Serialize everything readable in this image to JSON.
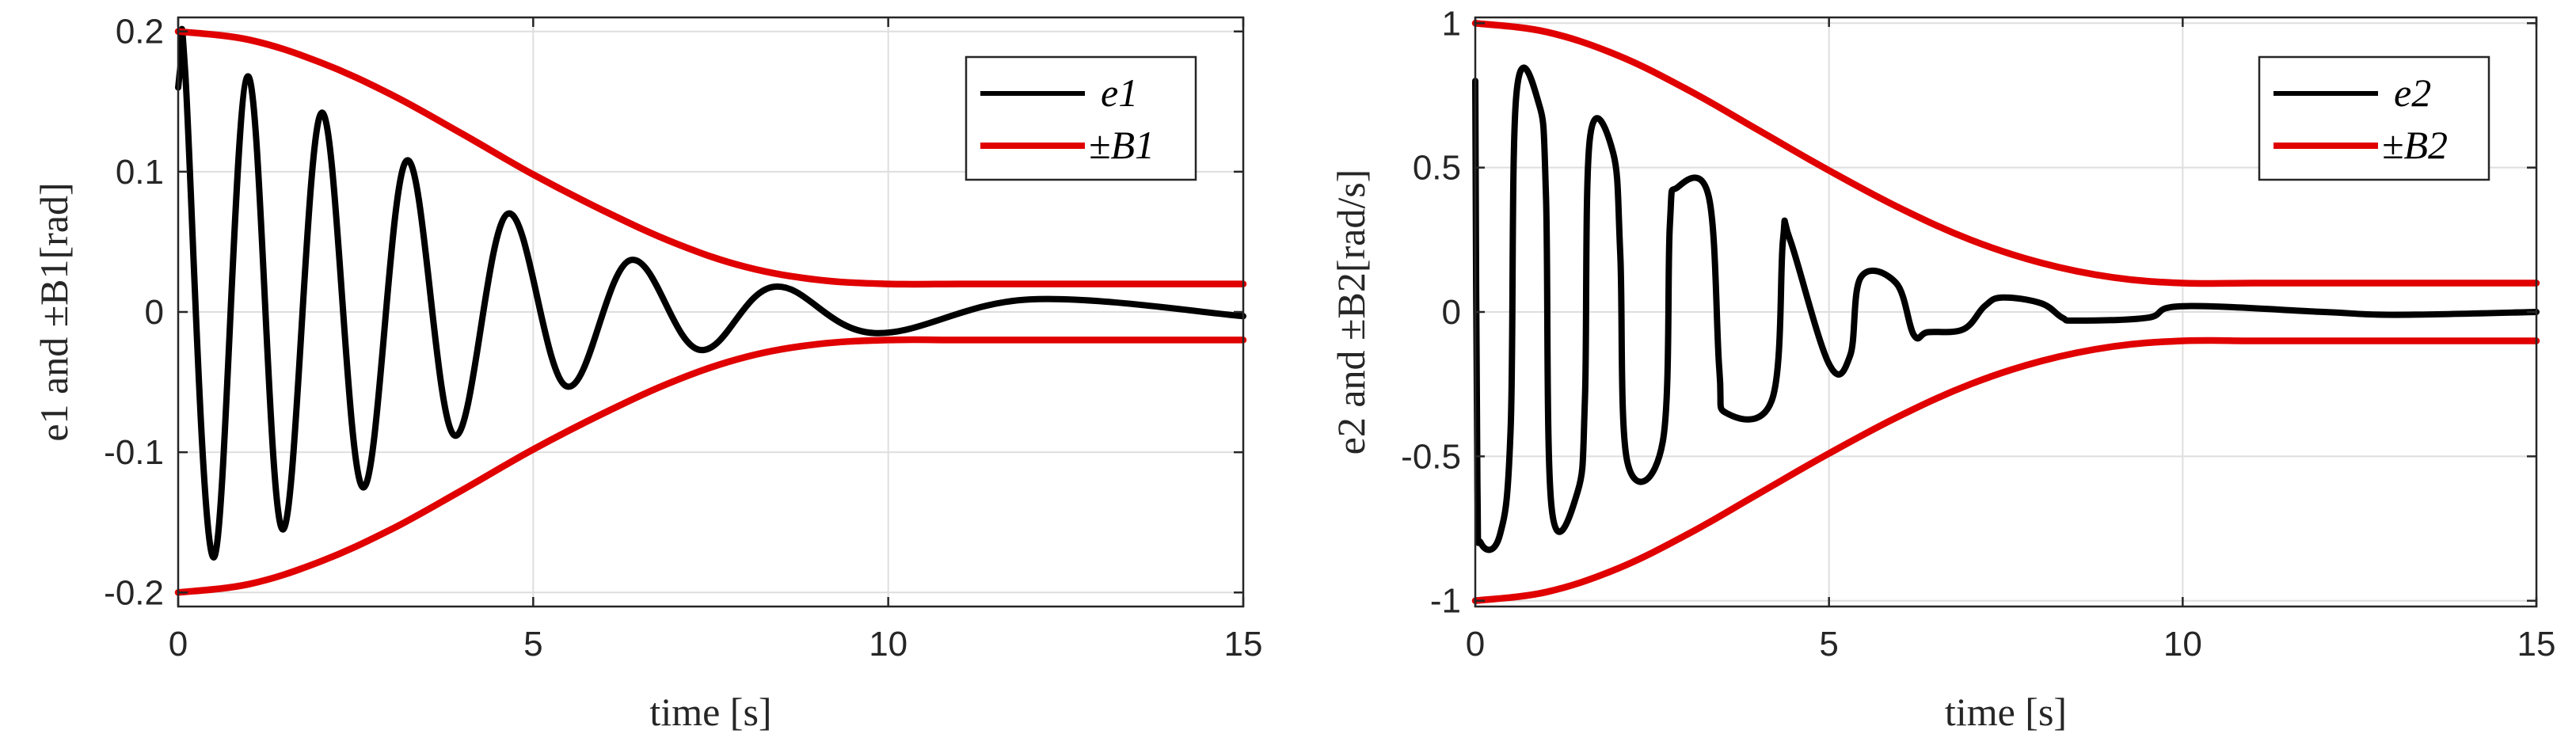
{
  "colors": {
    "error": "#000000",
    "bound": "#e00000",
    "grid": "#dedede",
    "axis": "#262626"
  },
  "chart_data": [
    {
      "type": "line",
      "xlabel": "time [s]",
      "ylabel": "e1 and ±B1[rad]",
      "xlim": [
        0,
        15
      ],
      "ylim": [
        -0.21,
        0.21
      ],
      "xticks": [
        0,
        5,
        10,
        15
      ],
      "xtick_labels": [
        "0",
        "5",
        "10",
        "15"
      ],
      "yticks": [
        -0.2,
        -0.1,
        0,
        0.1,
        0.2
      ],
      "ytick_labels": [
        "-0.2",
        "-0.1",
        "0",
        "0.1",
        "0.2"
      ],
      "grid": true,
      "legend_position": "top-right",
      "legend": [
        "e1",
        "±B1"
      ],
      "series": [
        {
          "name": "e1",
          "x": [
            0,
            0.05,
            0.1,
            0.5,
            0.98,
            1.47,
            2.02,
            2.6,
            3.22,
            3.89,
            4.64,
            5.47,
            6.37,
            7.34,
            8.4,
            9.8,
            12.0,
            15.0
          ],
          "y": [
            0.16,
            0.18,
            0.17,
            -0.175,
            0.168,
            -0.155,
            0.142,
            -0.125,
            0.108,
            -0.088,
            0.07,
            -0.053,
            0.037,
            -0.027,
            0.018,
            -0.015,
            0.009,
            -0.003
          ]
        },
        {
          "name": "B1 upper",
          "x": [
            0,
            1,
            2,
            3,
            4,
            5,
            6,
            7,
            8,
            9,
            10,
            11,
            12,
            13,
            14,
            15
          ],
          "y": [
            0.2,
            0.194,
            0.178,
            0.155,
            0.127,
            0.098,
            0.072,
            0.049,
            0.032,
            0.023,
            0.02,
            0.02,
            0.02,
            0.02,
            0.02,
            0.02
          ]
        },
        {
          "name": "B1 lower",
          "x": [
            0,
            1,
            2,
            3,
            4,
            5,
            6,
            7,
            8,
            9,
            10,
            11,
            12,
            13,
            14,
            15
          ],
          "y": [
            -0.2,
            -0.194,
            -0.178,
            -0.155,
            -0.127,
            -0.098,
            -0.072,
            -0.049,
            -0.032,
            -0.023,
            -0.02,
            -0.02,
            -0.02,
            -0.02,
            -0.02,
            -0.02
          ]
        }
      ]
    },
    {
      "type": "line",
      "xlabel": "time [s]",
      "ylabel": "e2 and ±B2[rad/s]",
      "xlim": [
        0,
        15
      ],
      "ylim": [
        -1.02,
        1.02
      ],
      "xticks": [
        0,
        5,
        10,
        15
      ],
      "xtick_labels": [
        "0",
        "5",
        "10",
        "15"
      ],
      "yticks": [
        -1,
        -0.5,
        0,
        0.5,
        1
      ],
      "ytick_labels": [
        "-1",
        "-0.5",
        "0",
        "0.5",
        "1"
      ],
      "grid": true,
      "legend_position": "top-right",
      "legend": [
        "e2",
        "±B2"
      ],
      "series": [
        {
          "name": "e2",
          "x": [
            0,
            0.03,
            0.08,
            0.35,
            0.5,
            0.58,
            0.9,
            1.0,
            1.08,
            1.45,
            1.55,
            1.62,
            1.95,
            2.05,
            2.15,
            2.65,
            2.75,
            2.85,
            3.3,
            3.45,
            3.55,
            4.2,
            4.35,
            4.45,
            5.0,
            5.3,
            5.45,
            5.95,
            6.2,
            6.4,
            6.9,
            7.2,
            7.45,
            8.0,
            8.3,
            8.5,
            9.5,
            10.0,
            12.0,
            13.0,
            15.0
          ],
          "y": [
            0.8,
            -0.6,
            -0.8,
            -0.77,
            -0.4,
            0.75,
            0.72,
            0.4,
            -0.68,
            -0.62,
            -0.3,
            0.6,
            0.55,
            0.2,
            -0.52,
            -0.45,
            0.3,
            0.43,
            0.4,
            -0.2,
            -0.35,
            -0.3,
            0.25,
            0.25,
            -0.18,
            -0.15,
            0.12,
            0.1,
            -0.08,
            -0.07,
            -0.06,
            0.02,
            0.05,
            0.03,
            -0.02,
            -0.03,
            -0.02,
            0.02,
            0.0,
            -0.01,
            0.0
          ]
        },
        {
          "name": "B2 upper",
          "x": [
            0,
            1,
            2,
            3,
            4,
            5,
            6,
            7,
            8,
            9,
            10,
            11,
            12,
            13,
            14,
            15
          ],
          "y": [
            1.0,
            0.97,
            0.89,
            0.77,
            0.63,
            0.49,
            0.36,
            0.25,
            0.17,
            0.12,
            0.1,
            0.1,
            0.1,
            0.1,
            0.1,
            0.1
          ]
        },
        {
          "name": "B2 lower",
          "x": [
            0,
            1,
            2,
            3,
            4,
            5,
            6,
            7,
            8,
            9,
            10,
            11,
            12,
            13,
            14,
            15
          ],
          "y": [
            -1.0,
            -0.97,
            -0.89,
            -0.77,
            -0.63,
            -0.49,
            -0.36,
            -0.25,
            -0.17,
            -0.12,
            -0.1,
            -0.1,
            -0.1,
            -0.1,
            -0.1,
            -0.1
          ]
        }
      ]
    }
  ]
}
